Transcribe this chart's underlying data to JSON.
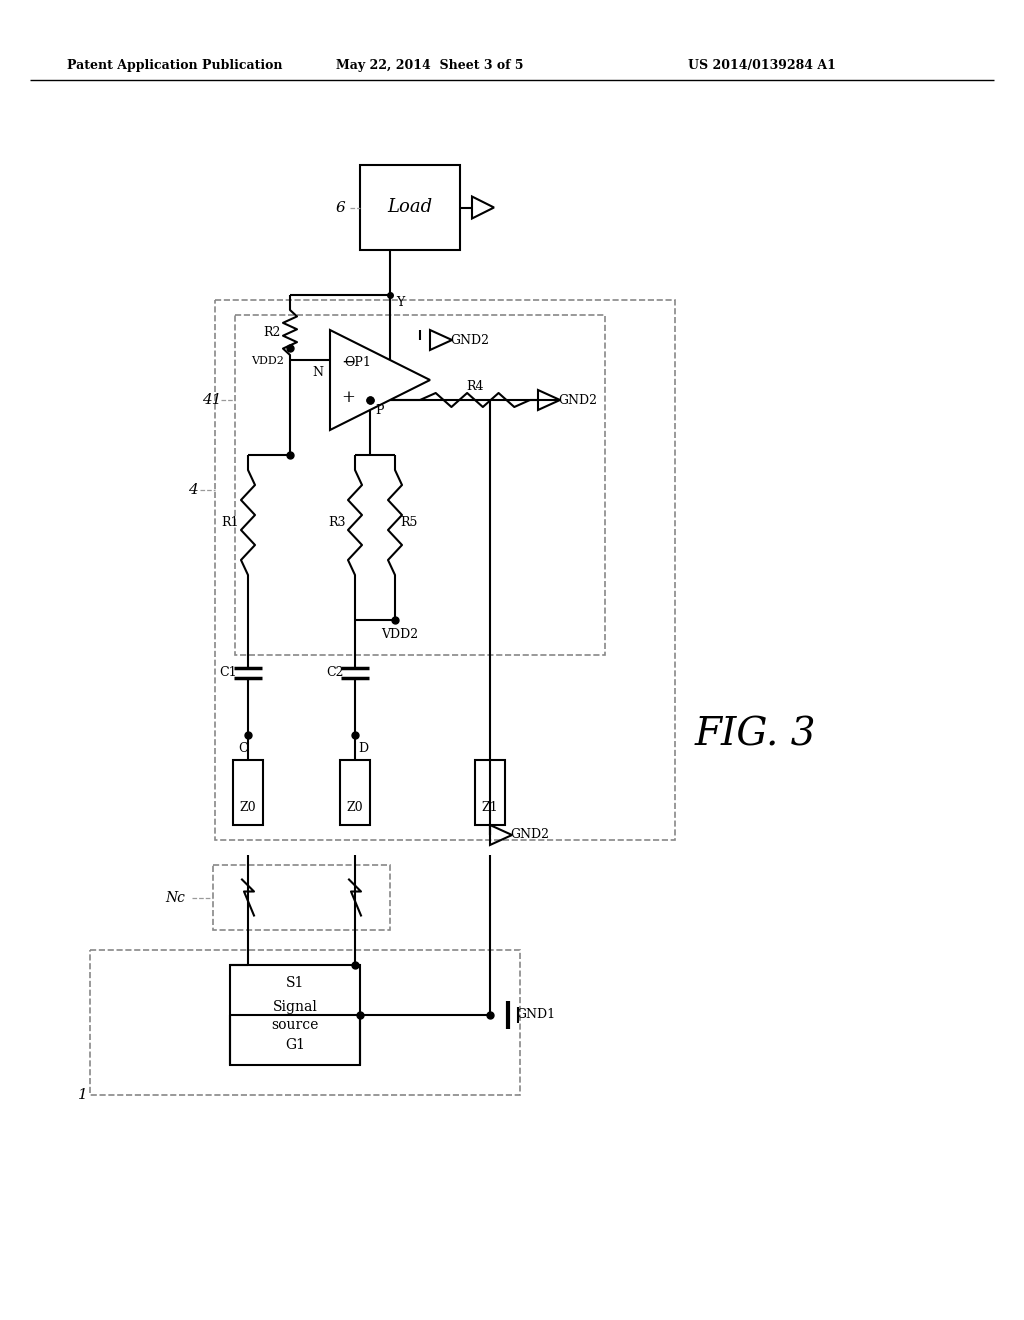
{
  "title_left": "Patent Application Publication",
  "title_mid": "May 22, 2014  Sheet 3 of 5",
  "title_right": "US 2014/0139284 A1",
  "fig_label": "FIG. 3",
  "background": "#ffffff"
}
